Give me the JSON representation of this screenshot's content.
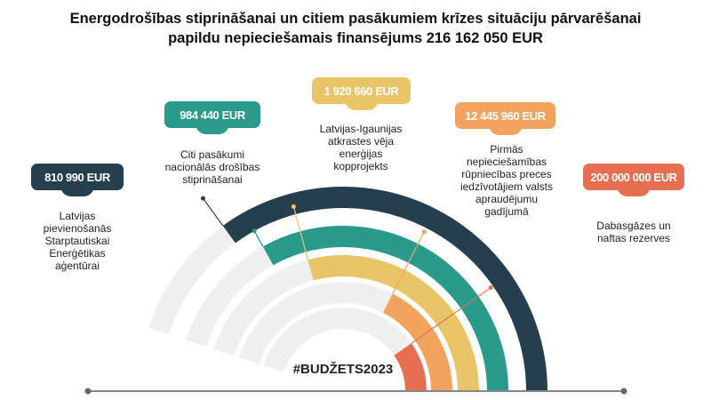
{
  "header": {
    "title_line1": "Energodrošības stiprināšanai un citiem pasākumiem krīzes situāciju pārvarēšanai",
    "title_line2": "papildu nepieciešamais finansējums 216 162 050 EUR"
  },
  "hashtag": "#BUDŽETS2023",
  "chart_data": {
    "type": "pie",
    "style": "radial-arcs",
    "title": "Energodrošības stiprināšanai un citiem pasākumiem krīzes situāciju pārvarēšanai papildu nepieciešamais finansējums 216 162 050 EUR",
    "total": 216162050,
    "unit": "EUR",
    "categories": [
      "Latvijas pievienošanās Starptautiskai Enerģētikas aģentūrai",
      "Citi pasākumi nacionālās drošības stiprināšanai",
      "Latvijas-Igaunijas atkrastes vēja enerģijas kopprojekts",
      "Pirmās nepieciešamības rūpniecības preces iedzīvotājiem valsts apraudējumu gadījumā",
      "Dabasgāzes un naftas rezerves"
    ],
    "values": [
      810990,
      984440,
      1920660,
      12445960,
      200000000
    ],
    "labels": [
      "810 990 EUR",
      "984 440 EUR",
      "1 920 660 EUR",
      "12 445 960 EUR",
      "200 000 000 EUR"
    ],
    "colors": [
      "#263f4f",
      "#2a9a8b",
      "#e9c567",
      "#f2a35e",
      "#e66f51"
    ]
  },
  "items": [
    {
      "amount": "810 990 EUR",
      "desc": "Latvijas\npievienošanās\nStarptautiskai\nEnerģētikas\naģentūrai",
      "color": "#263f4f"
    },
    {
      "amount": "984 440 EUR",
      "desc": "Citi pasākumi\nnacionālās drošības\nstiprināšanai",
      "color": "#2a9a8b"
    },
    {
      "amount": "1 920 660 EUR",
      "desc": "Latvijas-Igaunijas\natkrastes vēja\nenerģijas\nkopprojekts",
      "color": "#e9c567"
    },
    {
      "amount": "12 445 960 EUR",
      "desc": "Pirmās\nnepieciešamības\nrūpniecības preces\niedzīvotājiem valsts\napraudējumu\ngadījumā",
      "color": "#f2a35e"
    },
    {
      "amount": "200 000 000 EUR",
      "desc": "Dabasgāzes un\nnaftas rezerves",
      "color": "#e66f51"
    }
  ]
}
